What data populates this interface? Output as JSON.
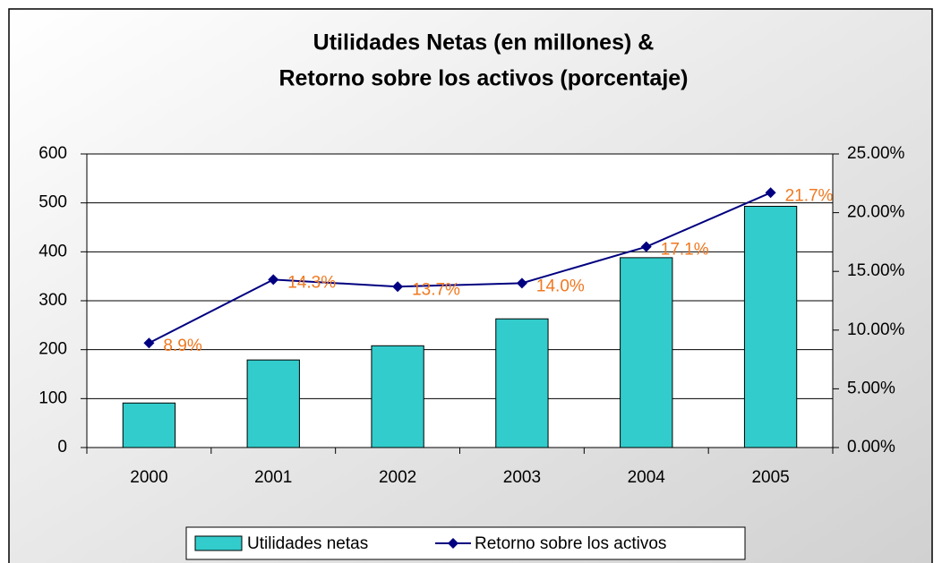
{
  "chart_data": {
    "type": "bar-line",
    "title": [
      "Utilidades Netas (en millones) &",
      "Retorno sobre los activos (porcentaje)"
    ],
    "categories": [
      "2000",
      "2001",
      "2002",
      "2003",
      "2004",
      "2005"
    ],
    "series": [
      {
        "name": "Utilidades netas",
        "type": "bar",
        "color": "#33cccc",
        "values": [
          91,
          179,
          208,
          263,
          388,
          493
        ]
      },
      {
        "name": "Retorno sobre los activos",
        "type": "line",
        "axis": "y2",
        "color": "#000080",
        "label_color": "#f07820",
        "values": [
          8.9,
          14.3,
          13.7,
          14.0,
          17.1,
          21.7
        ],
        "value_labels": [
          "8.9%",
          "14.3%",
          "13.7%",
          "14.0%",
          "17.1%",
          "21.7%"
        ]
      }
    ],
    "ylim": [
      0,
      600
    ],
    "yticks": [
      0,
      100,
      200,
      300,
      400,
      500,
      600
    ],
    "y2lim": [
      0,
      25
    ],
    "y2ticks": [
      {
        "value": 0,
        "label": "0.00%"
      },
      {
        "value": 5,
        "label": "5.00%"
      },
      {
        "value": 10,
        "label": "10.00%"
      },
      {
        "value": 15,
        "label": "15.00%"
      },
      {
        "value": 20,
        "label": "20.00%"
      },
      {
        "value": 25,
        "label": "25.00%"
      }
    ],
    "grid": true,
    "legend": "bottom"
  }
}
